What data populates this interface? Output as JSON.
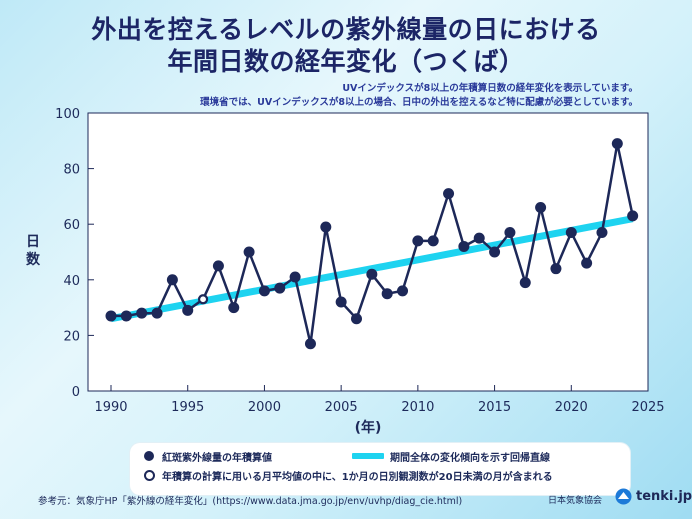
{
  "title_line1": "外出を控えるレベルの紫外線量の日における",
  "title_line2": "年間日数の経年変化（つくば）",
  "subtitle_line1": "UVインデックスが8以上の年積算日数の経年変化を表示しています。",
  "subtitle_line2": "環境省では、UVインデックスが8以上の場合、日中の外出を控えるなど特に配慮が必要としています。",
  "legend": {
    "series": "紅斑紫外線量の年積算値",
    "trend": "期間全体の変化傾向を示す回帰直線",
    "note": "年積算の計算に用いる月平均値の中に、1か月の日別観測数が20日未満の月が含まれる"
  },
  "footer": {
    "source": "参考元：気象庁HP「紫外線の経年変化」(https://www.data.jma.go.jp/env/uvhp/diag_cie.html)",
    "org": "日本気象協会",
    "brand": "tenki.jp"
  },
  "chart_data": {
    "type": "line",
    "xlabel": "(年)",
    "ylabel": "日数",
    "xlim": [
      1988.5,
      2025
    ],
    "ylim": [
      0,
      100
    ],
    "xticks": [
      1990,
      1995,
      2000,
      2005,
      2010,
      2015,
      2020,
      2025
    ],
    "yticks": [
      0,
      20,
      40,
      60,
      80,
      100
    ],
    "grid": false,
    "legend_position": "bottom",
    "series": [
      {
        "name": "紅斑紫外線量の年積算値",
        "color": "#1d2858",
        "x": [
          1990,
          1991,
          1992,
          1993,
          1994,
          1995,
          1996,
          1997,
          1998,
          1999,
          2000,
          2001,
          2002,
          2003,
          2004,
          2005,
          2006,
          2007,
          2008,
          2009,
          2010,
          2011,
          2012,
          2013,
          2014,
          2015,
          2016,
          2017,
          2018,
          2019,
          2020,
          2021,
          2022,
          2023,
          2024
        ],
        "y": [
          27,
          27,
          28,
          28,
          40,
          29,
          33,
          45,
          30,
          50,
          36,
          37,
          41,
          17,
          59,
          32,
          26,
          42,
          35,
          36,
          54,
          54,
          71,
          52,
          55,
          50,
          57,
          39,
          66,
          44,
          57,
          46,
          57,
          89,
          63
        ],
        "hollow_x": [
          1996
        ]
      }
    ],
    "trend_line": {
      "name": "期間全体の変化傾向を示す回帰直線",
      "color": "#1ed3f0",
      "x": [
        1990,
        2024
      ],
      "y": [
        26,
        62
      ]
    }
  }
}
